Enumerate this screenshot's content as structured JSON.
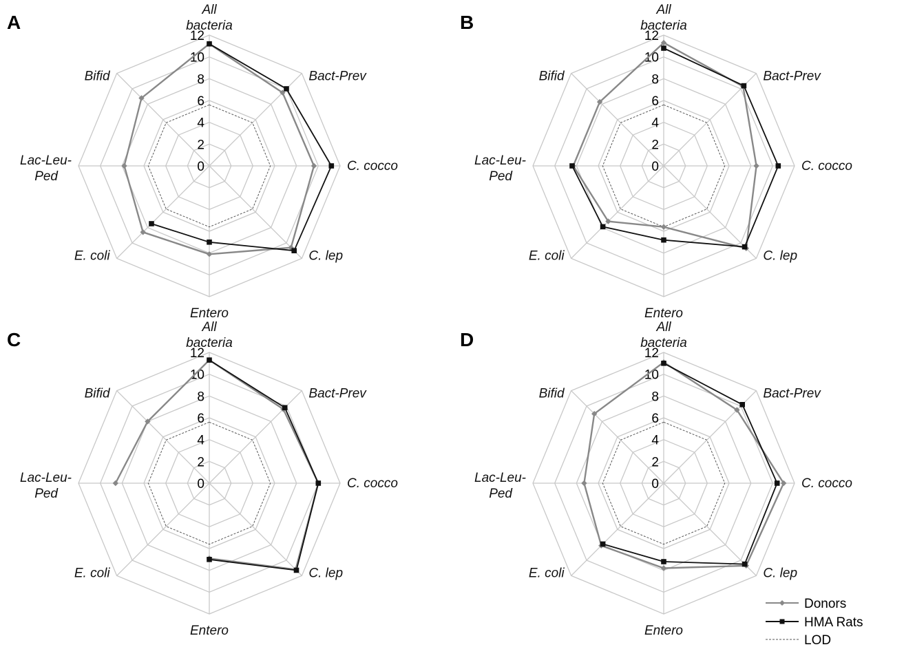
{
  "chart_data": [
    {
      "type": "radar",
      "panel": "A",
      "axes": [
        "All bacteria",
        "Bact-Prev",
        "C. cocco",
        "C. lep",
        "Entero",
        "E. coli",
        "Lac-Leu-Ped",
        "Bifid"
      ],
      "ticks": [
        "0",
        "2",
        "4",
        "6",
        "8",
        "10",
        "12"
      ],
      "rlim": [
        0,
        12
      ],
      "lod": 5.6,
      "series": [
        {
          "name": "Donors",
          "values": [
            11.2,
            9.5,
            9.6,
            10.6,
            8.1,
            8.6,
            7.8,
            8.8
          ]
        },
        {
          "name": "HMA Rats",
          "values": [
            11.2,
            10.0,
            11.2,
            11.0,
            7.0,
            7.5,
            null,
            null
          ]
        }
      ]
    },
    {
      "type": "radar",
      "panel": "B",
      "axes": [
        "All bacteria",
        "Bact-Prev",
        "C. cocco",
        "C. lep",
        "Entero",
        "E. coli",
        "Lac-Leu-Ped",
        "Bifid"
      ],
      "ticks": [
        "0",
        "2",
        "4",
        "6",
        "8",
        "10",
        "12"
      ],
      "rlim": [
        0,
        12
      ],
      "lod": 5.6,
      "series": [
        {
          "name": "Donors",
          "values": [
            11.3,
            10.3,
            8.5,
            10.7,
            5.6,
            7.2,
            8.3,
            8.3
          ]
        },
        {
          "name": "HMA Rats",
          "values": [
            10.8,
            10.4,
            10.5,
            10.5,
            6.8,
            7.9,
            8.4,
            null
          ]
        }
      ]
    },
    {
      "type": "radar",
      "panel": "C",
      "axes": [
        "All bacteria",
        "Bact-Prev",
        "C. cocco",
        "C. lep",
        "Entero",
        "E. coli",
        "Lac-Leu-Ped",
        "Bifid"
      ],
      "ticks": [
        "0",
        "2",
        "4",
        "6",
        "8",
        "10",
        "12"
      ],
      "rlim": [
        0,
        12
      ],
      "lod": 5.6,
      "series": [
        {
          "name": "Donors",
          "values": [
            11.3,
            9.6,
            10.0,
            11.2,
            6.9,
            null,
            8.6,
            8.0
          ]
        },
        {
          "name": "HMA Rats",
          "values": [
            11.3,
            9.8,
            10.0,
            11.3,
            7.0,
            null,
            null,
            null
          ]
        }
      ]
    },
    {
      "type": "radar",
      "panel": "D",
      "axes": [
        "All bacteria",
        "Bact-Prev",
        "C. cocco",
        "C. lep",
        "Entero",
        "E. coli",
        "Lac-Leu-Ped",
        "Bifid"
      ],
      "ticks": [
        "0",
        "2",
        "4",
        "6",
        "8",
        "10",
        "12"
      ],
      "rlim": [
        0,
        12
      ],
      "lod": 5.6,
      "series": [
        {
          "name": "Donors",
          "values": [
            11.1,
            9.5,
            11.0,
            10.7,
            7.8,
            8.1,
            7.3,
            9.0
          ]
        },
        {
          "name": "HMA Rats",
          "values": [
            11.0,
            10.2,
            10.4,
            10.5,
            7.2,
            7.9,
            null,
            null
          ]
        }
      ]
    }
  ],
  "legend": {
    "placement": "bottom-right",
    "items": [
      {
        "label": "Donors",
        "color": "#888888",
        "marker": "diamond"
      },
      {
        "label": "HMA Rats",
        "color": "#111111",
        "marker": "square"
      },
      {
        "label": "LOD",
        "color": "#555555",
        "marker": "none",
        "dashed": true
      }
    ]
  },
  "colors": {
    "grid": "#c8c8c8",
    "donors": "#888888",
    "rats": "#111111",
    "lod": "#555555"
  }
}
